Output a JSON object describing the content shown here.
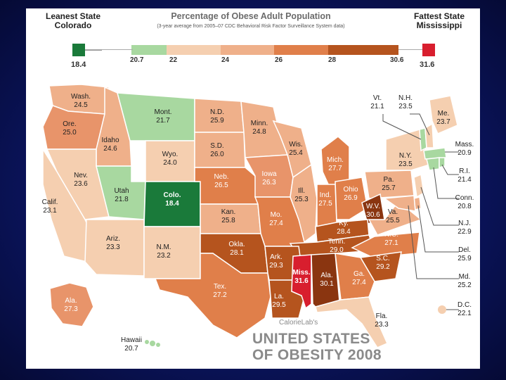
{
  "header": {
    "leanest_label": "Leanest State",
    "leanest_state": "Colorado",
    "fattest_label": "Fattest State",
    "fattest_state": "Mississippi",
    "title": "Percentage of Obese Adult Population",
    "subtitle": "(3-year average from 2005–07 CDC Behavioral Risk Factor Surveillance System data)"
  },
  "legend": {
    "ticks": [
      "18.4",
      "20.7",
      "22",
      "24",
      "26",
      "28",
      "30.6",
      "31.6"
    ],
    "colors": {
      "lean": "#1a7a3a",
      "light_green": "#a8d8a0",
      "c22": "#f5cfb0",
      "c24": "#efb08a",
      "c26": "#e07f4a",
      "c28": "#b5541e",
      "c30": "#8a3510",
      "fat": "#d81e2e"
    }
  },
  "states": {
    "wash": {
      "name": "Wash.",
      "value": "24.5"
    },
    "ore": {
      "name": "Ore.",
      "value": "25.0"
    },
    "idaho": {
      "name": "Idaho",
      "value": "24.6"
    },
    "mont": {
      "name": "Mont.",
      "value": "21.7"
    },
    "nd": {
      "name": "N.D.",
      "value": "25.9"
    },
    "minn": {
      "name": "Minn.",
      "value": "24.8"
    },
    "sd": {
      "name": "S.D.",
      "value": "26.0"
    },
    "wyo": {
      "name": "Wyo.",
      "value": "24.0"
    },
    "nev": {
      "name": "Nev.",
      "value": "23.6"
    },
    "calif": {
      "name": "Calif.",
      "value": "23.1"
    },
    "utah": {
      "name": "Utah",
      "value": "21.8"
    },
    "colo": {
      "name": "Colo.",
      "value": "18.4"
    },
    "neb": {
      "name": "Neb.",
      "value": "26.5"
    },
    "iowa": {
      "name": "Iowa",
      "value": "26.3"
    },
    "wis": {
      "name": "Wis.",
      "value": "25.4"
    },
    "mich": {
      "name": "Mich.",
      "value": "27.7"
    },
    "ill": {
      "name": "Ill.",
      "value": "25.3"
    },
    "ind": {
      "name": "Ind.",
      "value": "27.5"
    },
    "ohio": {
      "name": "Ohio",
      "value": "26.9"
    },
    "pa": {
      "name": "Pa.",
      "value": "25.7"
    },
    "ny": {
      "name": "N.Y.",
      "value": "23.5"
    },
    "kan": {
      "name": "Kan.",
      "value": "25.8"
    },
    "mo": {
      "name": "Mo.",
      "value": "27.4"
    },
    "wva": {
      "name": "W.V.",
      "value": "30.6"
    },
    "va": {
      "name": "Va.",
      "value": "25.5"
    },
    "ky": {
      "name": "Ky.",
      "value": "28.4"
    },
    "ariz": {
      "name": "Ariz.",
      "value": "23.3"
    },
    "nm": {
      "name": "N.M.",
      "value": "23.2"
    },
    "okla": {
      "name": "Okla.",
      "value": "28.1"
    },
    "ark": {
      "name": "Ark.",
      "value": "29.3"
    },
    "tenn": {
      "name": "Tenn.",
      "value": "29.0"
    },
    "nc": {
      "name": "N.C.",
      "value": "27.1"
    },
    "sc": {
      "name": "S.C.",
      "value": "29.2"
    },
    "tex": {
      "name": "Tex.",
      "value": "27.2"
    },
    "la": {
      "name": "La.",
      "value": "29.5"
    },
    "miss": {
      "name": "Miss.",
      "value": "31.6"
    },
    "ala": {
      "name": "Ala.",
      "value": "30.1"
    },
    "ga": {
      "name": "Ga.",
      "value": "27.4"
    },
    "fla": {
      "name": "Fla.",
      "value": "23.3"
    },
    "alaska": {
      "name": "Ala.",
      "value": "27.3"
    },
    "hawaii": {
      "name": "Hawaii",
      "value": "20.7"
    },
    "vt": {
      "name": "Vt.",
      "value": "21.1"
    },
    "nh": {
      "name": "N.H.",
      "value": "23.5"
    },
    "me": {
      "name": "Me.",
      "value": "23.7"
    },
    "mass": {
      "name": "Mass.",
      "value": "20.9"
    },
    "ri": {
      "name": "R.I.",
      "value": "21.4"
    },
    "conn": {
      "name": "Conn.",
      "value": "20.8"
    },
    "nj": {
      "name": "N.J.",
      "value": "22.9"
    },
    "del": {
      "name": "Del.",
      "value": "25.9"
    },
    "md": {
      "name": "Md.",
      "value": "25.2"
    },
    "dc": {
      "name": "D.C.",
      "value": "22.1"
    }
  },
  "branding": {
    "small": "CalorieLab's",
    "line1": "UNITED STATES",
    "line2": "OF OBESITY 2008"
  }
}
